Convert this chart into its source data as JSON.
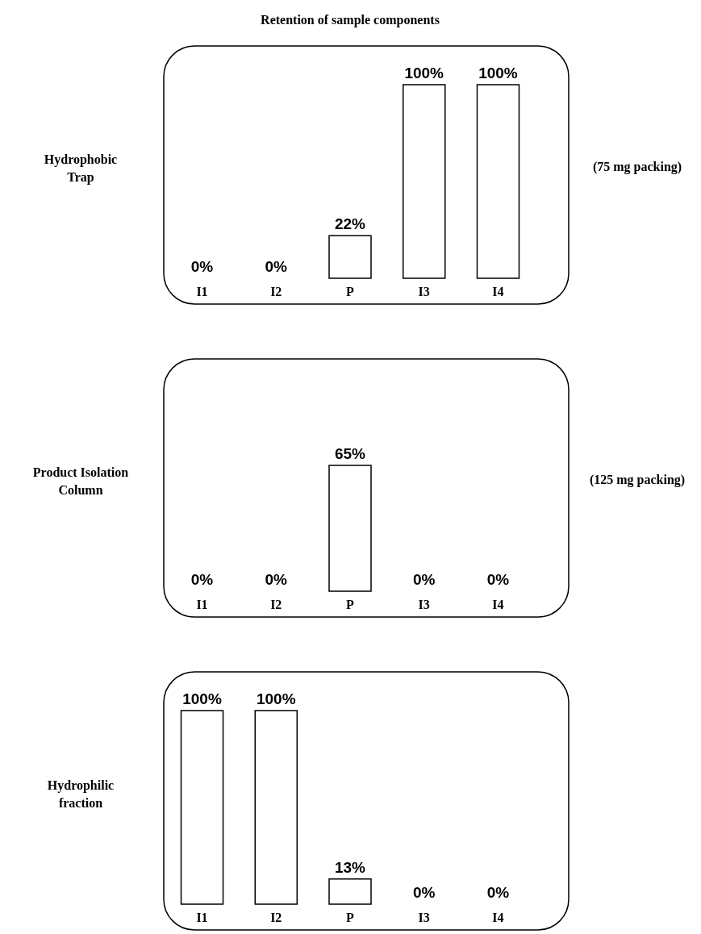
{
  "chart_data": [
    {
      "type": "bar",
      "title": "Retention of sample components",
      "ylabel": "Hydrophobic\nTrap",
      "annotations": [
        "(75 mg packing)"
      ],
      "categories": [
        "I1",
        "I2",
        "P",
        "I3",
        "I4"
      ],
      "values": [
        0,
        0,
        22,
        100,
        100
      ],
      "color": "#ffffff",
      "data_labels": true,
      "value_labels": [
        "0%",
        "0%",
        "22%",
        "100%",
        "100%"
      ]
    },
    {
      "type": "bar",
      "ylabel": "Product Isolation\nColumn",
      "annotations": [
        "(125 mg packing)"
      ],
      "categories": [
        "I1",
        "I2",
        "P",
        "I3",
        "I4"
      ],
      "values": [
        0,
        0,
        65,
        0,
        0
      ],
      "color": "#ffffff",
      "data_labels": true,
      "value_labels": [
        "0%",
        "0%",
        "65%",
        "0%",
        "0%"
      ]
    },
    {
      "type": "bar",
      "ylabel": "Hydrophilic\nfraction",
      "categories": [
        "I1",
        "I2",
        "P",
        "I3",
        "I4"
      ],
      "values": [
        100,
        100,
        13,
        0,
        0
      ],
      "color": "#ffffff",
      "data_labels": true,
      "value_labels": [
        "100%",
        "100%",
        "13%",
        "0%",
        "0%"
      ]
    }
  ]
}
